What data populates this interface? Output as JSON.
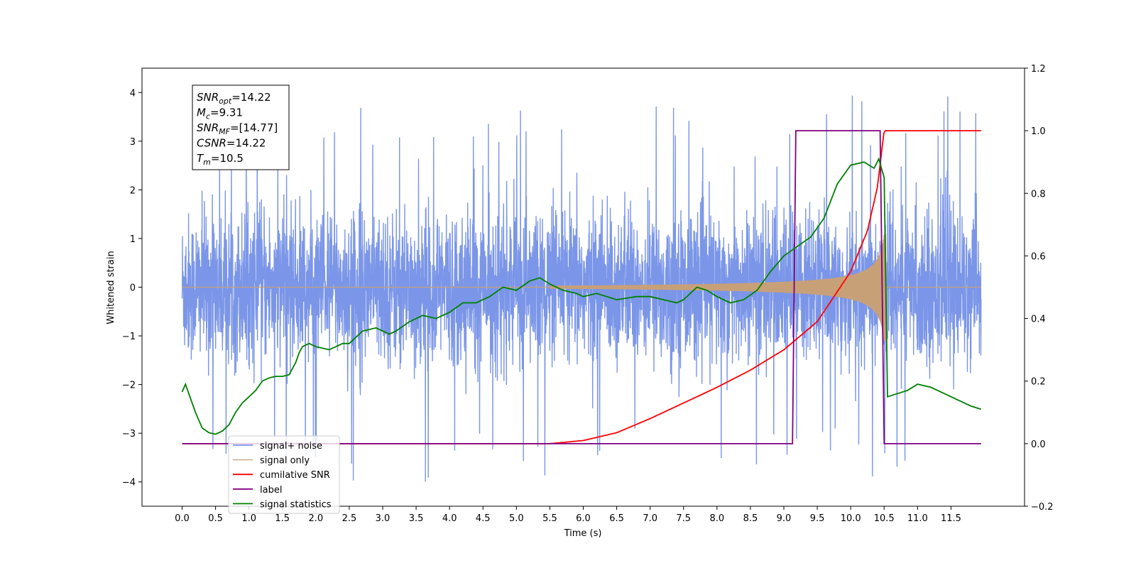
{
  "chart_data": {
    "type": "line",
    "title": "",
    "xlabel": "Time (s)",
    "ylabel": "Whitened strain",
    "ylabel_right": "",
    "xlim": [
      -0.6,
      12.6
    ],
    "ylim": [
      -4.5,
      4.5
    ],
    "ylim_right": [
      -0.2,
      1.2
    ],
    "x_ticks": [
      "0.0",
      "0.5",
      "1.0",
      "1.5",
      "2.0",
      "2.5",
      "3.0",
      "3.5",
      "4.0",
      "4.5",
      "5.0",
      "5.5",
      "6.0",
      "6.5",
      "7.0",
      "7.5",
      "8.0",
      "8.5",
      "9.0",
      "9.5",
      "10.0",
      "10.5",
      "11.0",
      "11.5"
    ],
    "y_ticks": [
      "4",
      "3",
      "2",
      "1",
      "0",
      "−1",
      "−2",
      "−3",
      "−4"
    ],
    "y_ticks_right": [
      "1.2",
      "1.0",
      "0.8",
      "0.6",
      "0.4",
      "0.2",
      "0.0",
      "−0.2"
    ],
    "grid": false,
    "legend_position": "lower-left",
    "annotation": {
      "lines": [
        {
          "main": "SNR",
          "sub": "opt",
          "rest": "=14.22"
        },
        {
          "main": "M",
          "sub": "c",
          "rest": "=9.31"
        },
        {
          "main": "SNR",
          "sub": "MF",
          "rest": "=[14.77]"
        },
        {
          "main": "CSNR",
          "sub": "",
          "rest": "=14.22"
        },
        {
          "main": "T",
          "sub": "m",
          "rest": "=10.5"
        }
      ]
    },
    "series": [
      {
        "name": "signal+ noise",
        "color": "#7b96e8",
        "axis": "left",
        "description_values": {
          "noise_sigma": 0.75,
          "peak_max": 4.05,
          "peak_min": -4.1
        }
      },
      {
        "name": "signal only",
        "color": "#c8a078",
        "axis": "left",
        "envelope": {
          "start": 5.5,
          "end": 10.5,
          "max_amplitude": 1.1
        }
      },
      {
        "name": "cumilative SNR",
        "color": "#ff0000",
        "axis": "right",
        "x": [
          0.0,
          5.5,
          6.0,
          6.5,
          7.0,
          7.5,
          8.0,
          8.5,
          9.0,
          9.5,
          10.0,
          10.25,
          10.4,
          10.5,
          11.95
        ],
        "y": [
          0.0,
          0.0,
          0.01,
          0.035,
          0.08,
          0.13,
          0.18,
          0.235,
          0.3,
          0.39,
          0.55,
          0.68,
          0.82,
          1.0,
          1.0
        ]
      },
      {
        "name": "label",
        "color": "#800080",
        "axis": "right",
        "x": [
          0.0,
          9.13,
          9.18,
          10.44,
          10.5,
          11.95
        ],
        "y": [
          0.0,
          0.0,
          1.0,
          1.0,
          0.0,
          0.0
        ]
      },
      {
        "name": "signal statistics",
        "color": "#008000",
        "axis": "right",
        "x": [
          0.0,
          0.05,
          0.1,
          0.2,
          0.3,
          0.4,
          0.5,
          0.6,
          0.7,
          0.8,
          0.9,
          1.0,
          1.1,
          1.2,
          1.3,
          1.4,
          1.5,
          1.6,
          1.7,
          1.75,
          1.8,
          1.9,
          2.0,
          2.1,
          2.2,
          2.3,
          2.4,
          2.5,
          2.7,
          2.9,
          3.0,
          3.1,
          3.2,
          3.4,
          3.6,
          3.8,
          4.0,
          4.2,
          4.4,
          4.6,
          4.8,
          5.0,
          5.2,
          5.35,
          5.5,
          5.7,
          5.9,
          6.0,
          6.2,
          6.5,
          6.8,
          7.0,
          7.2,
          7.4,
          7.5,
          7.7,
          7.85,
          8.0,
          8.2,
          8.4,
          8.6,
          8.8,
          9.0,
          9.2,
          9.4,
          9.6,
          9.8,
          10.0,
          10.2,
          10.35,
          10.42,
          10.5,
          10.55,
          10.7,
          10.85,
          11.0,
          11.2,
          11.4,
          11.6,
          11.8,
          11.95
        ],
        "y": [
          0.165,
          0.19,
          0.16,
          0.1,
          0.05,
          0.035,
          0.03,
          0.04,
          0.06,
          0.1,
          0.13,
          0.15,
          0.17,
          0.2,
          0.21,
          0.215,
          0.215,
          0.22,
          0.26,
          0.29,
          0.31,
          0.32,
          0.31,
          0.305,
          0.3,
          0.31,
          0.32,
          0.32,
          0.36,
          0.37,
          0.36,
          0.35,
          0.36,
          0.39,
          0.41,
          0.4,
          0.42,
          0.45,
          0.45,
          0.47,
          0.5,
          0.49,
          0.52,
          0.53,
          0.51,
          0.49,
          0.48,
          0.47,
          0.48,
          0.46,
          0.47,
          0.47,
          0.46,
          0.45,
          0.46,
          0.5,
          0.49,
          0.47,
          0.45,
          0.46,
          0.49,
          0.55,
          0.6,
          0.63,
          0.66,
          0.72,
          0.83,
          0.89,
          0.9,
          0.88,
          0.91,
          0.85,
          0.15,
          0.16,
          0.17,
          0.19,
          0.18,
          0.16,
          0.14,
          0.12,
          0.11
        ]
      }
    ]
  }
}
